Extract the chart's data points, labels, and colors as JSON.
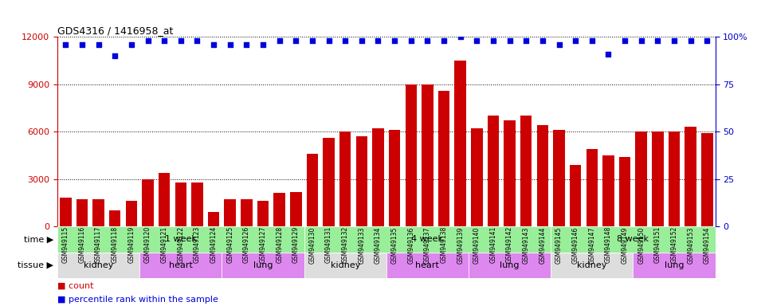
{
  "title": "GDS4316 / 1416958_at",
  "samples": [
    "GSM949115",
    "GSM949116",
    "GSM949117",
    "GSM949118",
    "GSM949119",
    "GSM949120",
    "GSM949121",
    "GSM949122",
    "GSM949123",
    "GSM949124",
    "GSM949125",
    "GSM949126",
    "GSM949127",
    "GSM949128",
    "GSM949129",
    "GSM949130",
    "GSM949131",
    "GSM949132",
    "GSM949133",
    "GSM949134",
    "GSM949135",
    "GSM949136",
    "GSM949137",
    "GSM949138",
    "GSM949139",
    "GSM949140",
    "GSM949141",
    "GSM949142",
    "GSM949143",
    "GSM949144",
    "GSM949145",
    "GSM949146",
    "GSM949147",
    "GSM949148",
    "GSM949149",
    "GSM949150",
    "GSM949151",
    "GSM949152",
    "GSM949153",
    "GSM949154"
  ],
  "counts": [
    1800,
    1700,
    1700,
    1000,
    1600,
    3000,
    3400,
    2800,
    2800,
    900,
    1700,
    1700,
    1600,
    2100,
    2200,
    4600,
    5600,
    6000,
    5700,
    6200,
    6100,
    9000,
    9000,
    8600,
    10500,
    6200,
    7000,
    6700,
    7000,
    6400,
    6100,
    3900,
    4900,
    4500,
    4400,
    6000,
    6000,
    6000,
    6300,
    5900
  ],
  "percentiles": [
    96,
    96,
    96,
    90,
    96,
    98,
    98,
    98,
    98,
    96,
    96,
    96,
    96,
    98,
    98,
    98,
    98,
    98,
    98,
    98,
    98,
    98,
    98,
    98,
    100,
    98,
    98,
    98,
    98,
    98,
    96,
    98,
    98,
    91,
    98,
    98,
    98,
    98,
    98,
    98
  ],
  "bar_color": "#cc0000",
  "dot_color": "#0000dd",
  "ylim_left": [
    0,
    12000
  ],
  "ylim_right": [
    0,
    100
  ],
  "yticks_left": [
    0,
    3000,
    6000,
    9000,
    12000
  ],
  "yticks_right": [
    0,
    25,
    50,
    75,
    100
  ],
  "time_groups": [
    {
      "label": "1 week",
      "start": 0,
      "end": 14,
      "color": "#99ee99"
    },
    {
      "label": "4 week",
      "start": 15,
      "end": 29,
      "color": "#99ee99"
    },
    {
      "label": "8 week",
      "start": 30,
      "end": 39,
      "color": "#99ee99"
    }
  ],
  "tissue_groups": [
    {
      "label": "kidney",
      "start": 0,
      "end": 4,
      "color": "#dddddd"
    },
    {
      "label": "heart",
      "start": 5,
      "end": 9,
      "color": "#dd88ee"
    },
    {
      "label": "lung",
      "start": 10,
      "end": 14,
      "color": "#dd88ee"
    },
    {
      "label": "kidney",
      "start": 15,
      "end": 19,
      "color": "#dddddd"
    },
    {
      "label": "heart",
      "start": 20,
      "end": 24,
      "color": "#dd88ee"
    },
    {
      "label": "lung",
      "start": 25,
      "end": 29,
      "color": "#dd88ee"
    },
    {
      "label": "kidney",
      "start": 30,
      "end": 34,
      "color": "#dddddd"
    },
    {
      "label": "lung",
      "start": 35,
      "end": 39,
      "color": "#dd88ee"
    }
  ],
  "bg_color": "#ffffff",
  "plot_bg": "#ffffff",
  "tick_bg": "#d8d8d8",
  "grid_color": "#000000",
  "left_axis_color": "#cc0000",
  "right_axis_color": "#0000cc"
}
